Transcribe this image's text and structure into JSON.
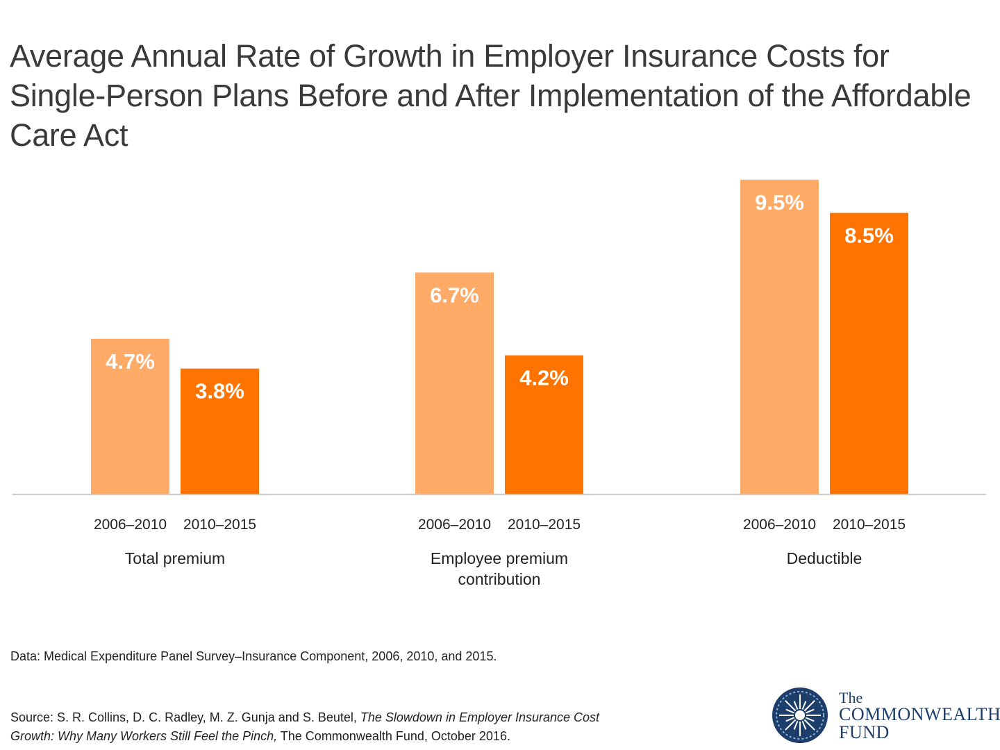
{
  "title": "Average Annual Rate of Growth in Employer Insurance Costs for Single-Person Plans Before and After Implementation of the Affordable Care Act",
  "colors": {
    "before": "#FFAA66",
    "after": "#FF7400",
    "baseline": "#cccccc"
  },
  "chart_data": {
    "type": "bar",
    "title": "Average Annual Rate of Growth in Employer Insurance Costs for Single-Person Plans Before and After Implementation of the Affordable Care Act",
    "categories": [
      {
        "name": "Total premium",
        "lines": [
          "Total premium"
        ]
      },
      {
        "name": "Employee premium contribution",
        "lines": [
          "Employee premium",
          "contribution"
        ]
      },
      {
        "name": "Deductible",
        "lines": [
          "Deductible"
        ]
      }
    ],
    "series": [
      {
        "name": "2006–2010",
        "values": [
          4.7,
          6.7,
          9.5
        ],
        "labels": [
          "4.7%",
          "6.7%",
          "9.5%"
        ]
      },
      {
        "name": "2010–2015",
        "values": [
          3.8,
          4.2,
          8.5
        ],
        "labels": [
          "3.8%",
          "4.2%",
          "8.5%"
        ]
      }
    ],
    "ylim": [
      0,
      10
    ],
    "xlabel": "",
    "ylabel": "",
    "grid": false,
    "legend": "none"
  },
  "notes": {
    "data": "Data: Medical Expenditure Panel Survey–Insurance Component, 2006, 2010, and 2015.",
    "source_prefix": "Source: S. R. Collins, D. C. Radley, M. Z. Gunja and S. Beutel, ",
    "source_title": "The Slowdown in Employer Insurance Cost Growth: Why Many Workers Still Feel the Pinch,",
    "source_suffix": " The Commonwealth Fund, October 2016."
  },
  "logo": {
    "the": "The",
    "name_line1": "COMMONWEALTH",
    "name_line2": "FUND",
    "icon": "commonwealth-fund-seal-icon"
  }
}
